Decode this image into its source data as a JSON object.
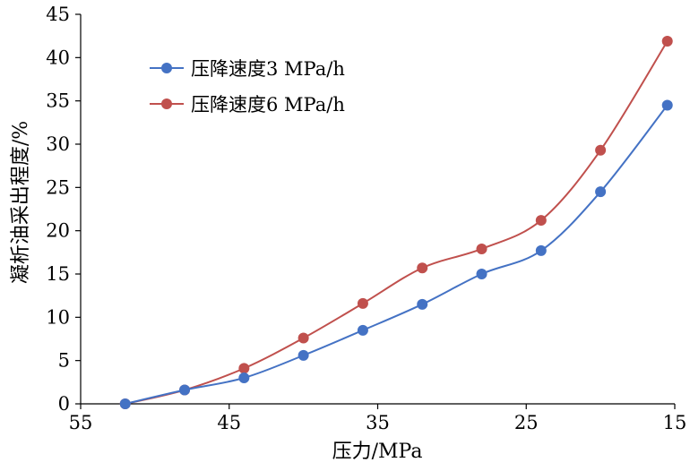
{
  "chart_data": {
    "type": "line",
    "xlabel": "压力/MPa",
    "ylabel": "凝析油采出程度/%",
    "xlim": [
      55,
      15
    ],
    "ylim": [
      0,
      45
    ],
    "x_reversed": true,
    "x_ticks": [
      55,
      45,
      35,
      25,
      15
    ],
    "y_ticks": [
      0,
      5,
      10,
      15,
      20,
      25,
      30,
      35,
      40,
      45
    ],
    "grid": false,
    "smooth": true,
    "legend_position": "top-left",
    "series": [
      {
        "name": "压降速度3 MPa/h",
        "color": "#4472C4",
        "points": [
          [
            52,
            0
          ],
          [
            48,
            1.6
          ],
          [
            44,
            3.0
          ],
          [
            40,
            5.6
          ],
          [
            36,
            8.5
          ],
          [
            32,
            11.5
          ],
          [
            28,
            15.0
          ],
          [
            24,
            17.7
          ],
          [
            20,
            24.5
          ],
          [
            15.5,
            34.5
          ]
        ]
      },
      {
        "name": "压降速度6 MPa/h",
        "color": "#C0504D",
        "points": [
          [
            52,
            0
          ],
          [
            48,
            1.6
          ],
          [
            44,
            4.1
          ],
          [
            40,
            7.6
          ],
          [
            36,
            11.6
          ],
          [
            32,
            15.7
          ],
          [
            28,
            17.9
          ],
          [
            24,
            21.2
          ],
          [
            20,
            29.3
          ],
          [
            15.5,
            41.9
          ]
        ]
      }
    ]
  }
}
